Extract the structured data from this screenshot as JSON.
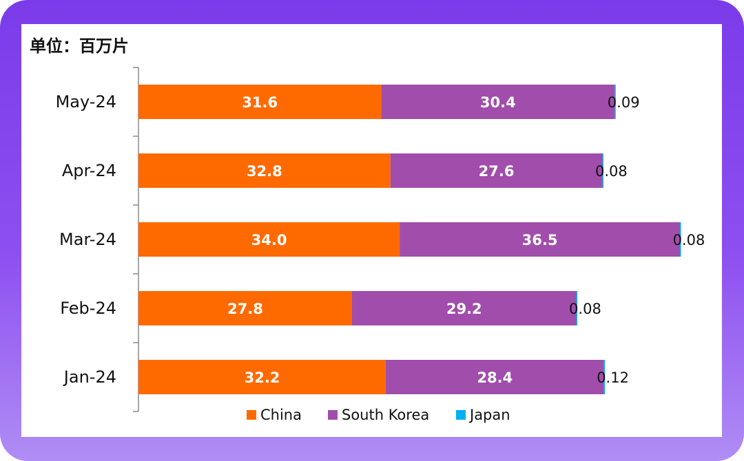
{
  "chart_data": {
    "type": "bar",
    "orientation": "horizontal",
    "stacked": true,
    "unit_label": "单位：百万片",
    "categories": [
      "May-24",
      "Apr-24",
      "Mar-24",
      "Feb-24",
      "Jan-24"
    ],
    "series": [
      {
        "name": "China",
        "color": "#ff6a00",
        "values": [
          31.6,
          32.8,
          34.0,
          27.8,
          32.2
        ],
        "labels": [
          "31.6",
          "32.8",
          "34.0",
          "27.8",
          "32.2"
        ]
      },
      {
        "name": "South Korea",
        "color": "#a14dab",
        "values": [
          30.4,
          27.6,
          36.5,
          29.2,
          28.4
        ],
        "labels": [
          "30.4",
          "27.6",
          "36.5",
          "29.2",
          "28.4"
        ]
      },
      {
        "name": "Japan",
        "color": "#00b0f0",
        "values": [
          0.09,
          0.08,
          0.08,
          0.08,
          0.12
        ],
        "labels": [
          "0.09",
          "0.08",
          "0.08",
          "0.08",
          "0.12"
        ]
      }
    ],
    "xlim": [
      0,
      72
    ],
    "grid": false,
    "legend_position": "bottom"
  }
}
